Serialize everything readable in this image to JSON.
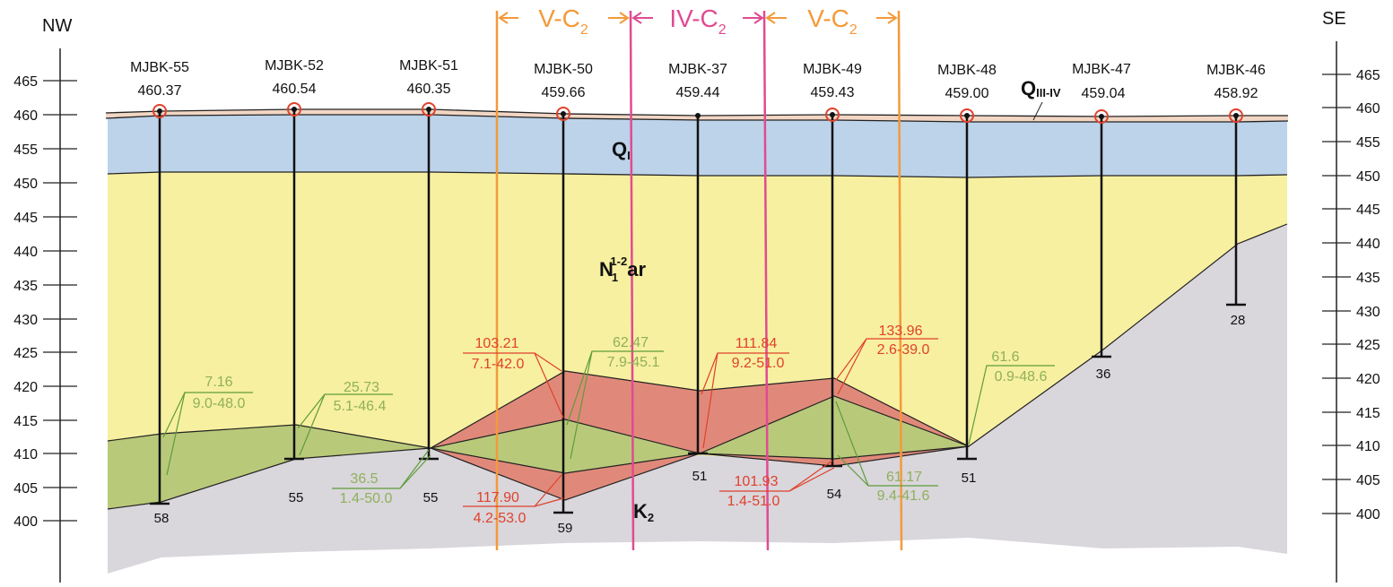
{
  "directions": {
    "left": "NW",
    "right": "SE"
  },
  "y_axis": {
    "ticks_left": [
      465,
      460,
      455,
      450,
      445,
      440,
      435,
      430,
      425,
      420,
      415,
      410,
      405,
      400
    ],
    "ticks_right": [
      465,
      460,
      455,
      450,
      445,
      440,
      435,
      430,
      425,
      420,
      415,
      410,
      405,
      400
    ]
  },
  "wells": [
    {
      "name": "MJBK-55",
      "elevation": "460.37",
      "depth": "58"
    },
    {
      "name": "MJBK-52",
      "elevation": "460.54",
      "depth": "55"
    },
    {
      "name": "MJBK-51",
      "elevation": "460.35",
      "depth": "55"
    },
    {
      "name": "MJBK-50",
      "elevation": "459.66",
      "depth": "59"
    },
    {
      "name": "MJBK-37",
      "elevation": "459.44",
      "depth": "51"
    },
    {
      "name": "MJBK-49",
      "elevation": "459.43",
      "depth": "54"
    },
    {
      "name": "MJBK-48",
      "elevation": "459.00",
      "depth": "51"
    },
    {
      "name": "MJBK-47",
      "elevation": "459.04",
      "depth": "36"
    },
    {
      "name": "MJBK-46",
      "elevation": "458.92",
      "depth": "28"
    }
  ],
  "layers": {
    "q1": {
      "main": "Q",
      "sub": "I"
    },
    "q34": {
      "main": "Q",
      "sub": "III-IV"
    },
    "n": {
      "main": "N",
      "sup": "1-2",
      "sub": "1",
      "suffix": "ar"
    },
    "k2": {
      "main": "K",
      "sub": "2"
    }
  },
  "zones": [
    {
      "main": "V-C",
      "sub": "2",
      "color": "orange"
    },
    {
      "main": "IV-C",
      "sub": "2",
      "color": "pink"
    },
    {
      "main": "V-C",
      "sub": "2",
      "color": "orange"
    }
  ],
  "callouts": {
    "green": [
      {
        "top": "7.16",
        "bottom": "9.0-48.0"
      },
      {
        "top": "25.73",
        "bottom": "5.1-46.4"
      },
      {
        "top": "36.5",
        "bottom": "1.4-50.0"
      },
      {
        "top": "62.47",
        "bottom": "7.9-45.1"
      },
      {
        "top": "61.6",
        "bottom": "0.9-48.6"
      },
      {
        "top": "61.17",
        "bottom": "9.4-41.6"
      }
    ],
    "red": [
      {
        "top": "103.21",
        "bottom": "7.1-42.0"
      },
      {
        "top": "117.90",
        "bottom": "4.2-53.0"
      },
      {
        "top": "111.84",
        "bottom": "9.2-51.0"
      },
      {
        "top": "101.93",
        "bottom": "1.4-51.0"
      },
      {
        "top": "133.96",
        "bottom": "2.6-39.0"
      }
    ]
  },
  "colors": {
    "quaternary": "#bcd3ea",
    "top_soil": "#f2d6c4",
    "neogene": "#f7f0a0",
    "cretaceous": "#d9d6dc",
    "green_ore": "#b9c97a",
    "red_ore": "#e0897a",
    "orange_line": "#f39a3a",
    "pink_line": "#e04b92"
  }
}
